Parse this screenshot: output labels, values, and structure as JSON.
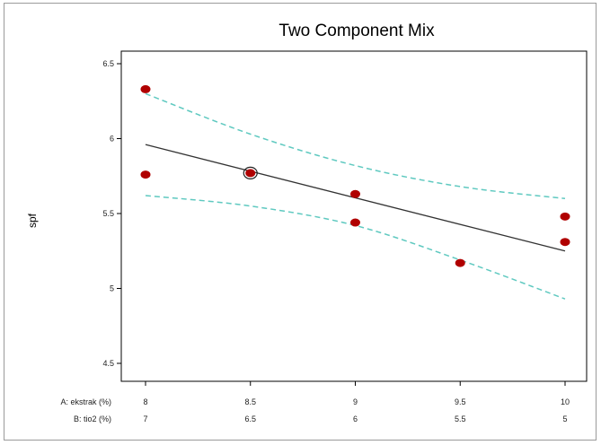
{
  "chart_data": {
    "type": "scatter",
    "title": "Two Component Mix",
    "ylabel": "spf",
    "ylim": [
      4.4,
      6.65
    ],
    "xlim": [
      8,
      10
    ],
    "y_ticks": [
      "4.5",
      "5",
      "5.5",
      "6",
      "6.5"
    ],
    "x_axis_rows": [
      {
        "label": "A: ekstrak (%)",
        "ticks": [
          "8",
          "8.5",
          "9",
          "9.5",
          "10"
        ]
      },
      {
        "label": "B: tio2 (%)",
        "ticks": [
          "7",
          "6.5",
          "6",
          "5.5",
          "5"
        ]
      }
    ],
    "tick_positions": [
      8,
      8.5,
      9,
      9.5,
      10
    ],
    "points": [
      {
        "x": 8.0,
        "y": 6.33
      },
      {
        "x": 8.0,
        "y": 5.76
      },
      {
        "x": 8.5,
        "y": 5.77,
        "highlighted": true
      },
      {
        "x": 9.0,
        "y": 5.63
      },
      {
        "x": 9.0,
        "y": 5.44
      },
      {
        "x": 9.5,
        "y": 5.17
      },
      {
        "x": 10.0,
        "y": 5.48
      },
      {
        "x": 10.0,
        "y": 5.31
      }
    ],
    "fit_line": {
      "x": [
        8,
        10
      ],
      "y": [
        5.96,
        5.25
      ]
    },
    "confidence_upper": {
      "x": [
        8,
        8.5,
        9,
        9.5,
        10
      ],
      "y": [
        6.3,
        6.03,
        5.82,
        5.68,
        5.6
      ]
    },
    "confidence_lower": {
      "x": [
        8,
        8.5,
        9,
        9.5,
        10
      ],
      "y": [
        5.62,
        5.55,
        5.42,
        5.19,
        4.93
      ]
    },
    "colors": {
      "points": "#b00000",
      "fit": "#333333",
      "confidence": "#5fc9c0",
      "frame": "#000000"
    }
  }
}
